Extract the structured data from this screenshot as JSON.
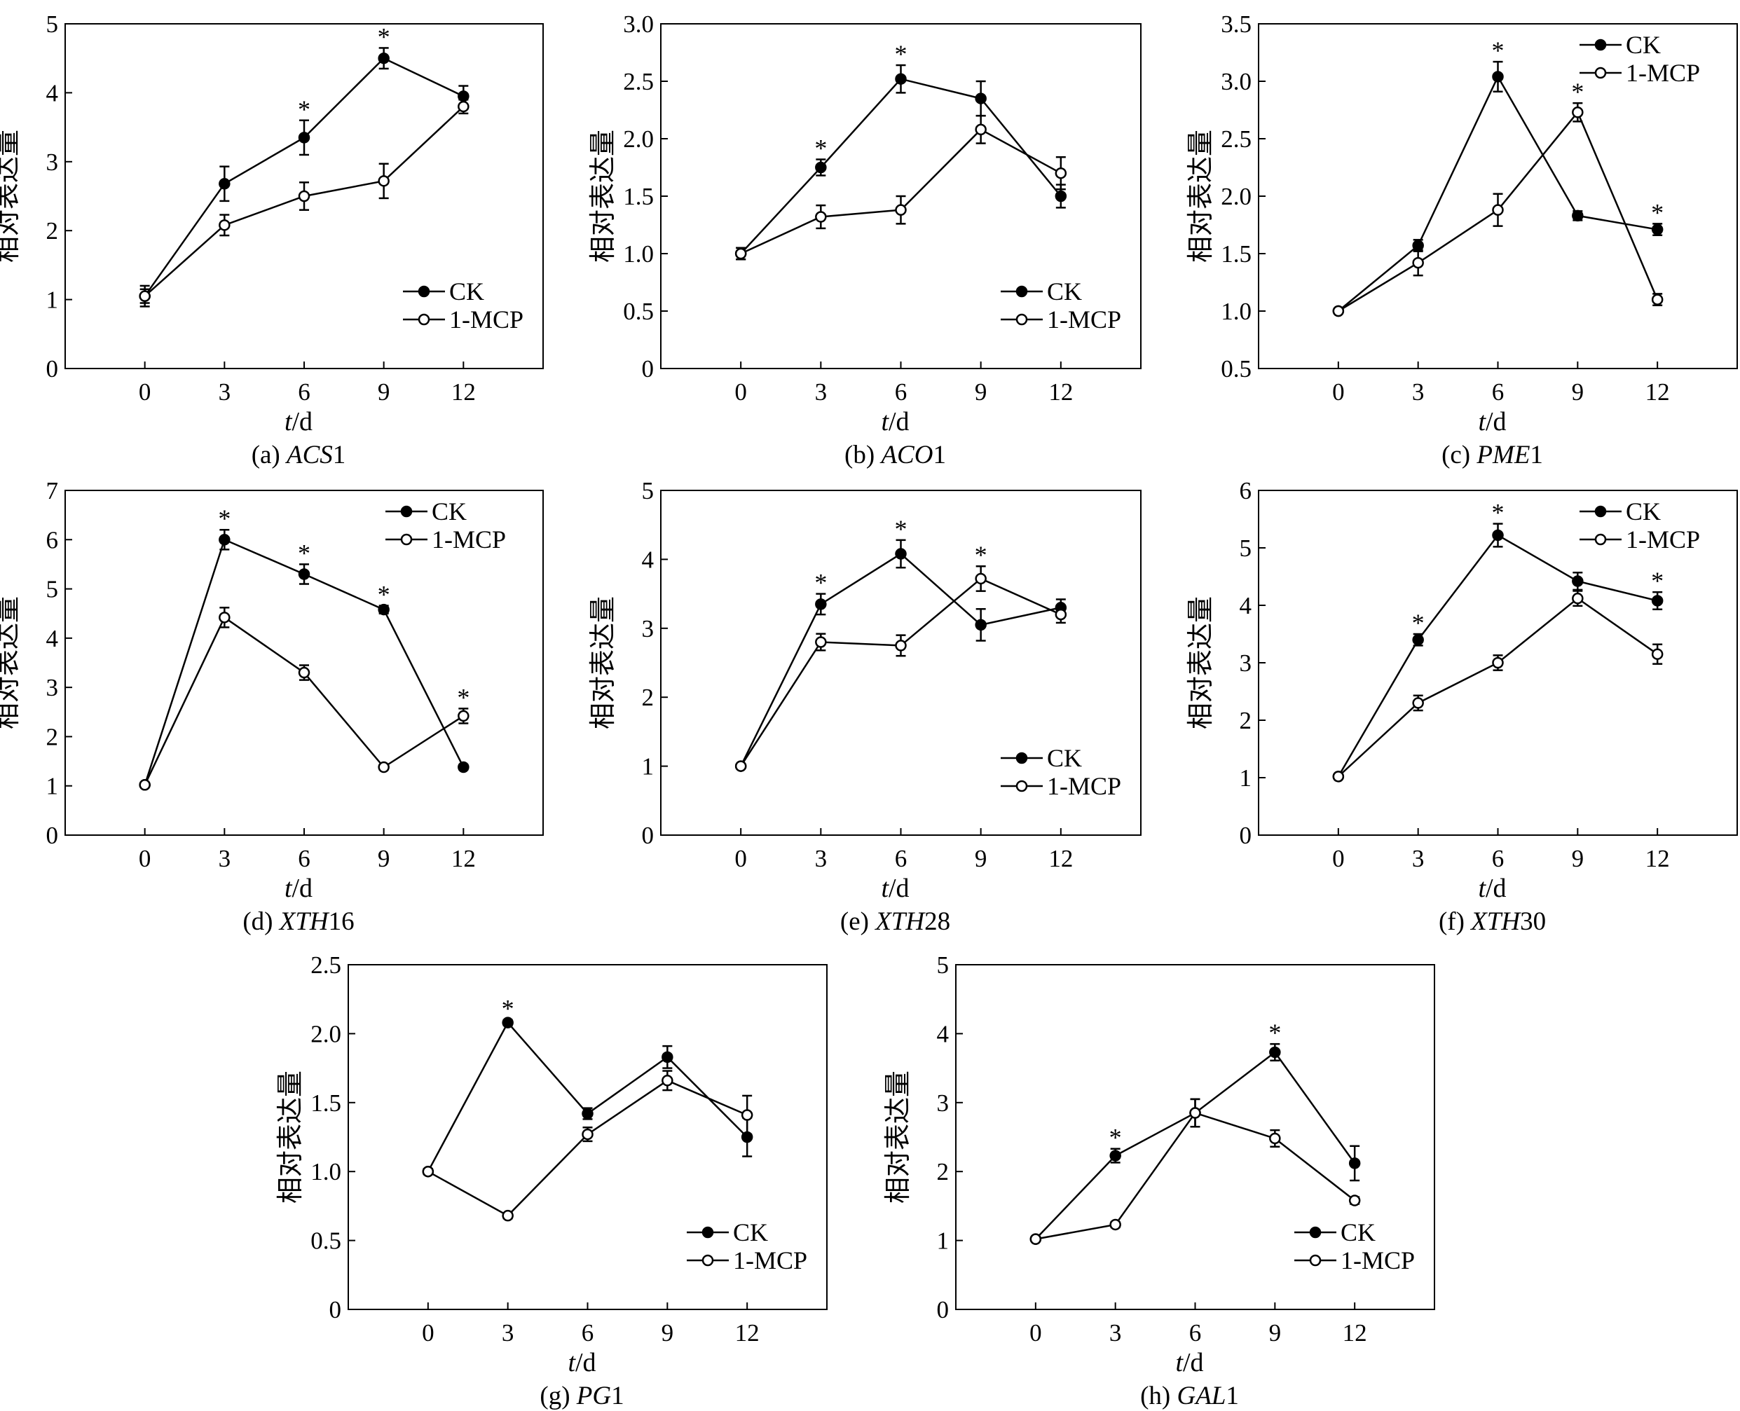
{
  "chart_data": [
    {
      "id": "a",
      "type": "line",
      "caption_prefix": "(a) ",
      "caption_gene": "ACS",
      "caption_suffix": "1",
      "xlabel_t": "t",
      "xlabel_unit": "/d",
      "ylabel": "相对表达量",
      "ylim": [
        0,
        5
      ],
      "yticks": [
        "0",
        "1",
        "2",
        "3",
        "4",
        "5"
      ],
      "x": [
        0,
        3,
        6,
        9,
        12
      ],
      "xlim": [
        -3,
        15
      ],
      "xticks": [
        "0",
        "3",
        "6",
        "9",
        "12"
      ],
      "legend": "bottom-right",
      "series": [
        {
          "name": "CK",
          "marker": "filled",
          "values": [
            1.05,
            2.68,
            3.35,
            4.5,
            3.95
          ],
          "errors": [
            0.15,
            0.25,
            0.25,
            0.15,
            0.15
          ]
        },
        {
          "name": "1-MCP",
          "marker": "open",
          "values": [
            1.05,
            2.08,
            2.5,
            2.72,
            3.8
          ],
          "errors": [
            0.1,
            0.15,
            0.2,
            0.25,
            0.1
          ]
        }
      ],
      "stars": [
        6,
        9
      ]
    },
    {
      "id": "b",
      "type": "line",
      "caption_prefix": "(b) ",
      "caption_gene": "ACO",
      "caption_suffix": "1",
      "xlabel_t": "t",
      "xlabel_unit": "/d",
      "ylabel": "相对表达量",
      "ylim": [
        0,
        3
      ],
      "yticks": [
        "0",
        "0.5",
        "1.0",
        "1.5",
        "2.0",
        "2.5",
        "3.0"
      ],
      "x": [
        0,
        3,
        6,
        9,
        12
      ],
      "xlim": [
        -3,
        15
      ],
      "xticks": [
        "0",
        "3",
        "6",
        "9",
        "12"
      ],
      "legend": "bottom-right",
      "series": [
        {
          "name": "CK",
          "marker": "filled",
          "values": [
            1.0,
            1.75,
            2.52,
            2.35,
            1.5
          ],
          "errors": [
            0.05,
            0.07,
            0.12,
            0.15,
            0.1
          ]
        },
        {
          "name": "1-MCP",
          "marker": "open",
          "values": [
            1.0,
            1.32,
            1.38,
            2.08,
            1.7
          ],
          "errors": [
            0.05,
            0.1,
            0.12,
            0.12,
            0.14
          ]
        }
      ],
      "stars": [
        3,
        6
      ]
    },
    {
      "id": "c",
      "type": "line",
      "caption_prefix": "(c) ",
      "caption_gene": "PME",
      "caption_suffix": "1",
      "xlabel_t": "t",
      "xlabel_unit": "/d",
      "ylabel": "相对表达量",
      "ylim": [
        0.5,
        3.5
      ],
      "yticks": [
        "0.5",
        "1.0",
        "1.5",
        "2.0",
        "2.5",
        "3.0",
        "3.5"
      ],
      "x": [
        0,
        3,
        6,
        9,
        12
      ],
      "xlim": [
        -3,
        15
      ],
      "xticks": [
        "0",
        "3",
        "6",
        "9",
        "12"
      ],
      "legend": "top-right",
      "series": [
        {
          "name": "CK",
          "marker": "filled",
          "values": [
            1.0,
            1.57,
            3.04,
            1.83,
            1.71
          ],
          "errors": [
            0.02,
            0.05,
            0.13,
            0.04,
            0.05
          ]
        },
        {
          "name": "1-MCP",
          "marker": "open",
          "values": [
            1.0,
            1.42,
            1.88,
            2.73,
            1.1
          ],
          "errors": [
            0.02,
            0.11,
            0.14,
            0.08,
            0.05
          ]
        }
      ],
      "stars": [
        6,
        9,
        12
      ]
    },
    {
      "id": "d",
      "type": "line",
      "caption_prefix": "(d) ",
      "caption_gene": "XTH",
      "caption_suffix": "16",
      "xlabel_t": "t",
      "xlabel_unit": "/d",
      "ylabel": "相对表达量",
      "ylim": [
        0,
        7
      ],
      "yticks": [
        "0",
        "1",
        "2",
        "3",
        "4",
        "5",
        "6",
        "7"
      ],
      "x": [
        0,
        3,
        6,
        9,
        12
      ],
      "xlim": [
        -3,
        15
      ],
      "xticks": [
        "0",
        "3",
        "6",
        "9",
        "12"
      ],
      "legend": "top-right",
      "series": [
        {
          "name": "CK",
          "marker": "filled",
          "values": [
            1.02,
            6.0,
            5.3,
            4.58,
            1.38
          ],
          "errors": [
            0.03,
            0.2,
            0.2,
            0.08,
            0.05
          ]
        },
        {
          "name": "1-MCP",
          "marker": "open",
          "values": [
            1.02,
            4.42,
            3.3,
            1.38,
            2.42
          ],
          "errors": [
            0.03,
            0.2,
            0.15,
            0.05,
            0.15
          ]
        }
      ],
      "stars": [
        3,
        6,
        9,
        12
      ]
    },
    {
      "id": "e",
      "type": "line",
      "caption_prefix": "(e) ",
      "caption_gene": "XTH",
      "caption_suffix": "28",
      "xlabel_t": "t",
      "xlabel_unit": "/d",
      "ylabel": "相对表达量",
      "ylim": [
        0,
        5
      ],
      "yticks": [
        "0",
        "1",
        "2",
        "3",
        "4",
        "5"
      ],
      "x": [
        0,
        3,
        6,
        9,
        12
      ],
      "xlim": [
        -3,
        15
      ],
      "xticks": [
        "0",
        "3",
        "6",
        "9",
        "12"
      ],
      "legend": "bottom-right",
      "series": [
        {
          "name": "CK",
          "marker": "filled",
          "values": [
            1.0,
            3.35,
            4.08,
            3.05,
            3.3
          ],
          "errors": [
            0.03,
            0.15,
            0.2,
            0.23,
            0.12
          ]
        },
        {
          "name": "1-MCP",
          "marker": "open",
          "values": [
            1.0,
            2.8,
            2.75,
            3.72,
            3.2
          ],
          "errors": [
            0.03,
            0.12,
            0.15,
            0.18,
            0.12
          ]
        }
      ],
      "stars": [
        3,
        6,
        9
      ]
    },
    {
      "id": "f",
      "type": "line",
      "caption_prefix": "(f) ",
      "caption_gene": "XTH",
      "caption_suffix": "30",
      "xlabel_t": "t",
      "xlabel_unit": "/d",
      "ylabel": "相对表达量",
      "ylim": [
        0,
        6
      ],
      "yticks": [
        "0",
        "1",
        "2",
        "3",
        "4",
        "5",
        "6"
      ],
      "x": [
        0,
        3,
        6,
        9,
        12
      ],
      "xlim": [
        -3,
        15
      ],
      "xticks": [
        "0",
        "3",
        "6",
        "9",
        "12"
      ],
      "legend": "top-right",
      "series": [
        {
          "name": "CK",
          "marker": "filled",
          "values": [
            1.02,
            3.4,
            5.22,
            4.42,
            4.08
          ],
          "errors": [
            0.03,
            0.1,
            0.2,
            0.15,
            0.15
          ]
        },
        {
          "name": "1-MCP",
          "marker": "open",
          "values": [
            1.02,
            2.3,
            3.0,
            4.12,
            3.15
          ],
          "errors": [
            0.03,
            0.13,
            0.13,
            0.13,
            0.17
          ]
        }
      ],
      "stars": [
        3,
        6,
        12
      ]
    },
    {
      "id": "g",
      "type": "line",
      "caption_prefix": "(g) ",
      "caption_gene": "PG",
      "caption_suffix": "1",
      "xlabel_t": "t",
      "xlabel_unit": "/d",
      "ylabel": "相对表达量",
      "ylim": [
        0,
        2.5
      ],
      "yticks": [
        "0",
        "0.5",
        "1.0",
        "1.5",
        "2.0",
        "2.5"
      ],
      "x": [
        0,
        3,
        6,
        9,
        12
      ],
      "xlim": [
        -3,
        15
      ],
      "xticks": [
        "0",
        "3",
        "6",
        "9",
        "12"
      ],
      "legend": "bottom-right",
      "series": [
        {
          "name": "CK",
          "marker": "filled",
          "values": [
            1.0,
            2.08,
            1.42,
            1.83,
            1.25
          ],
          "errors": [
            0.02,
            0.02,
            0.04,
            0.08,
            0.14
          ]
        },
        {
          "name": "1-MCP",
          "marker": "open",
          "values": [
            1.0,
            0.68,
            1.27,
            1.66,
            1.41
          ],
          "errors": [
            0.02,
            0.02,
            0.05,
            0.07,
            0.14
          ]
        }
      ],
      "stars": [
        3
      ]
    },
    {
      "id": "h",
      "type": "line",
      "caption_prefix": "(h) ",
      "caption_gene": "GAL",
      "caption_suffix": "1",
      "xlabel_t": "t",
      "xlabel_unit": "/d",
      "ylabel": "相对表达量",
      "ylim": [
        0,
        5
      ],
      "yticks": [
        "0",
        "1",
        "2",
        "3",
        "4",
        "5"
      ],
      "x": [
        0,
        3,
        6,
        9,
        12
      ],
      "xlim": [
        -3,
        15
      ],
      "xticks": [
        "0",
        "3",
        "6",
        "9",
        "12"
      ],
      "legend": "bottom-right",
      "series": [
        {
          "name": "CK",
          "marker": "filled",
          "values": [
            1.02,
            2.23,
            2.85,
            3.73,
            2.12
          ],
          "errors": [
            0.03,
            0.1,
            0.2,
            0.12,
            0.25
          ]
        },
        {
          "name": "1-MCP",
          "marker": "open",
          "values": [
            1.02,
            1.23,
            2.85,
            2.48,
            1.58
          ],
          "errors": [
            0.03,
            0.04,
            0.2,
            0.12,
            0.05
          ]
        }
      ],
      "stars": [
        3,
        9
      ]
    }
  ],
  "common": {
    "star": "*"
  }
}
